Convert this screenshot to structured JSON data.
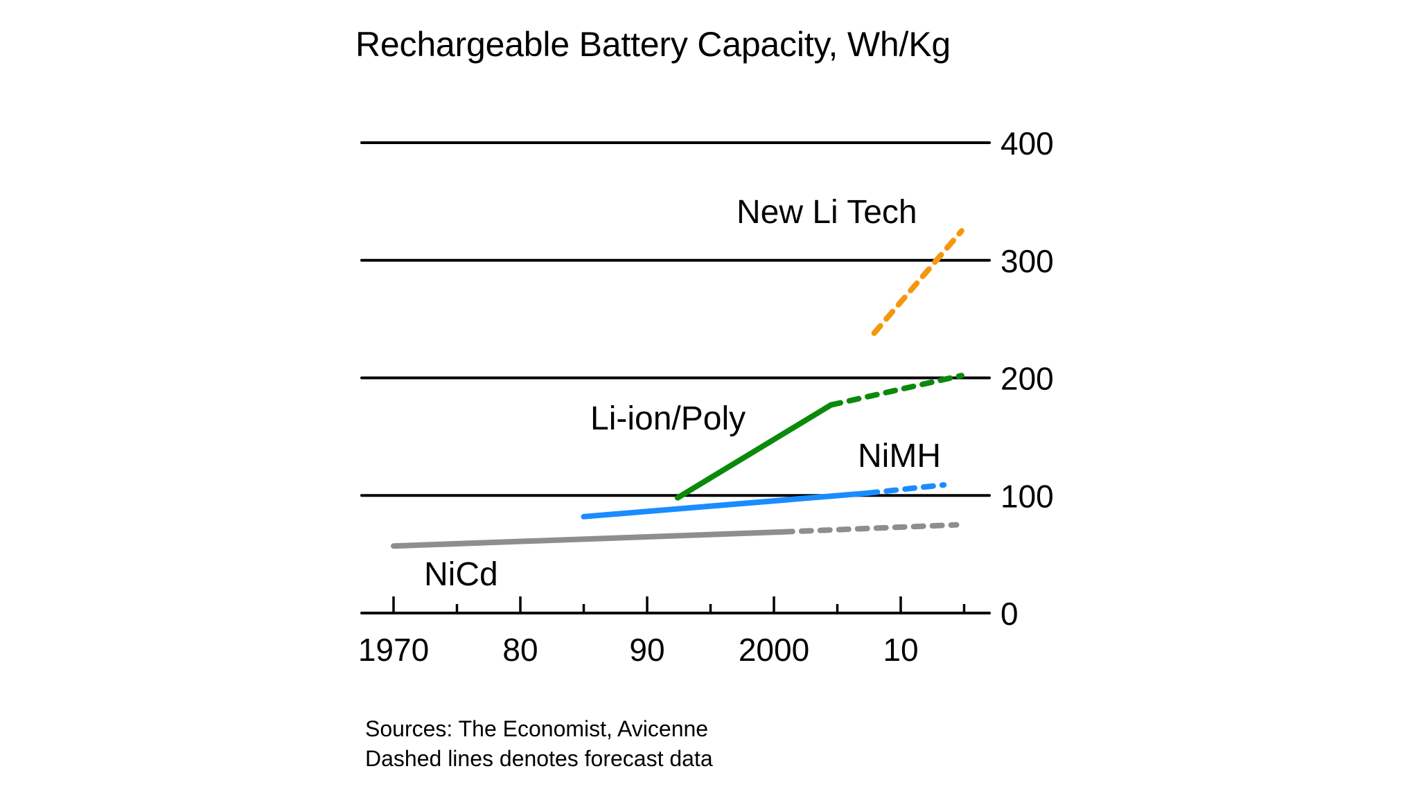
{
  "chart_data": {
    "type": "line",
    "title": "Rechargeable Battery Capacity, Wh/Kg",
    "xlabel": "",
    "ylabel": "Wh/Kg",
    "xlim": [
      1968,
      2017
    ],
    "ylim": [
      0,
      400
    ],
    "x_ticks_major": [
      1970,
      1980,
      1990,
      2000,
      2010
    ],
    "x_ticks_minor": [
      1975,
      1985,
      1995,
      2005,
      2015
    ],
    "x_tick_labels": [
      "1970",
      "80",
      "90",
      "2000",
      "10"
    ],
    "y_ticks": [
      0,
      100,
      200,
      300,
      400
    ],
    "y_tick_labels": [
      "0",
      "100",
      "200",
      "300",
      "400"
    ],
    "y_axis_side": "right",
    "grid": true,
    "legend": "inline-labels",
    "series": [
      {
        "name": "NiCd",
        "color": "#8e8e8e",
        "label_position": "below-left",
        "actual": [
          [
            1970,
            57
          ],
          [
            2000.7,
            69
          ]
        ],
        "forecast": [
          [
            2000.7,
            69
          ],
          [
            2014.4,
            75
          ]
        ]
      },
      {
        "name": "NiMH",
        "color": "#1a8cff",
        "label_position": "above-right",
        "actual": [
          [
            1985,
            82
          ],
          [
            2007.4,
            102
          ]
        ],
        "forecast": [
          [
            2007.4,
            102
          ],
          [
            2013.4,
            109
          ]
        ]
      },
      {
        "name": "Li-ion/Poly",
        "color": "#0a8a0a",
        "label_position": "above-left",
        "actual": [
          [
            1992.4,
            98
          ],
          [
            2004.5,
            177
          ]
        ],
        "forecast": [
          [
            2004.5,
            177
          ],
          [
            2014.8,
            202
          ]
        ]
      },
      {
        "name": "New Li Tech",
        "color": "#f5960f",
        "label_position": "above",
        "actual": [],
        "forecast": [
          [
            2007.9,
            238
          ],
          [
            2014.8,
            325
          ]
        ]
      }
    ],
    "annotations": [
      "Sources: The Economist, Avicenne",
      "Dashed lines denotes forecast data"
    ]
  }
}
